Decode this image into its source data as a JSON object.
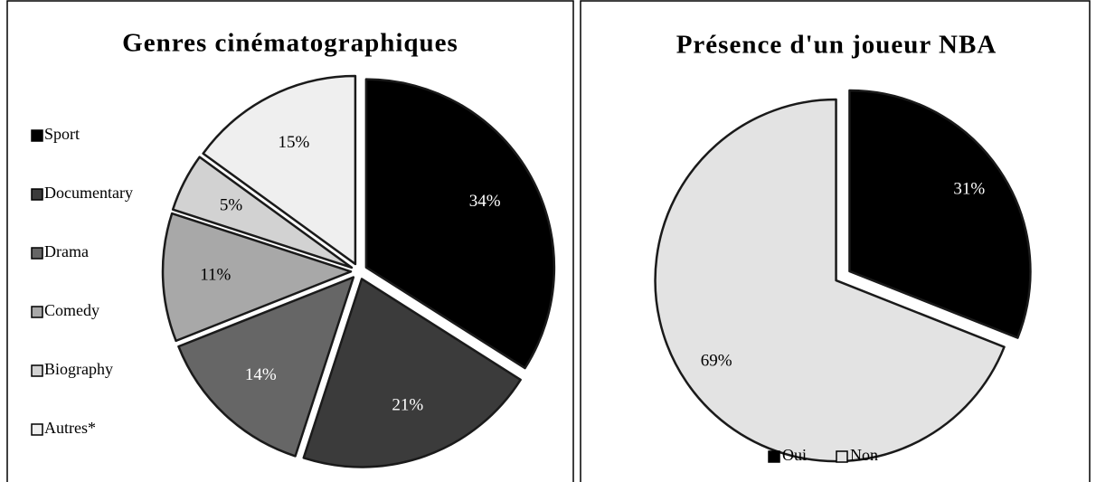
{
  "chart_data": [
    {
      "type": "pie",
      "title": "Genres cinématographiques",
      "categories": [
        "Sport",
        "Documentary",
        "Drama",
        "Comedy",
        "Biography",
        "Autres*"
      ],
      "values": [
        34,
        21,
        14,
        11,
        5,
        15
      ],
      "value_labels": [
        "34%",
        "21%",
        "14%",
        "11%",
        "5%",
        "15%"
      ],
      "colors": [
        "#000000",
        "#3b3b3b",
        "#666666",
        "#a8a8a8",
        "#d2d2d2",
        "#efefef"
      ],
      "legend": "left"
    },
    {
      "type": "pie",
      "title": "Présence d'un joueur NBA",
      "categories": [
        "Oui",
        "Non"
      ],
      "values": [
        31,
        69
      ],
      "value_labels": [
        "31%",
        "69%"
      ],
      "colors": [
        "#000000",
        "#e3e3e3"
      ],
      "legend": "bottom"
    }
  ]
}
